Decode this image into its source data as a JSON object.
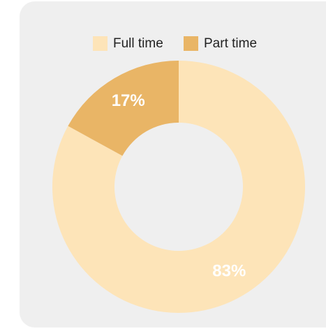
{
  "chart_data": {
    "type": "donut",
    "categories": [
      "Full time",
      "Part time"
    ],
    "values": [
      83,
      17
    ],
    "value_labels": [
      "83%",
      "17%"
    ],
    "colors": [
      "#fde4b8",
      "#e9b566"
    ],
    "legend": "top"
  }
}
